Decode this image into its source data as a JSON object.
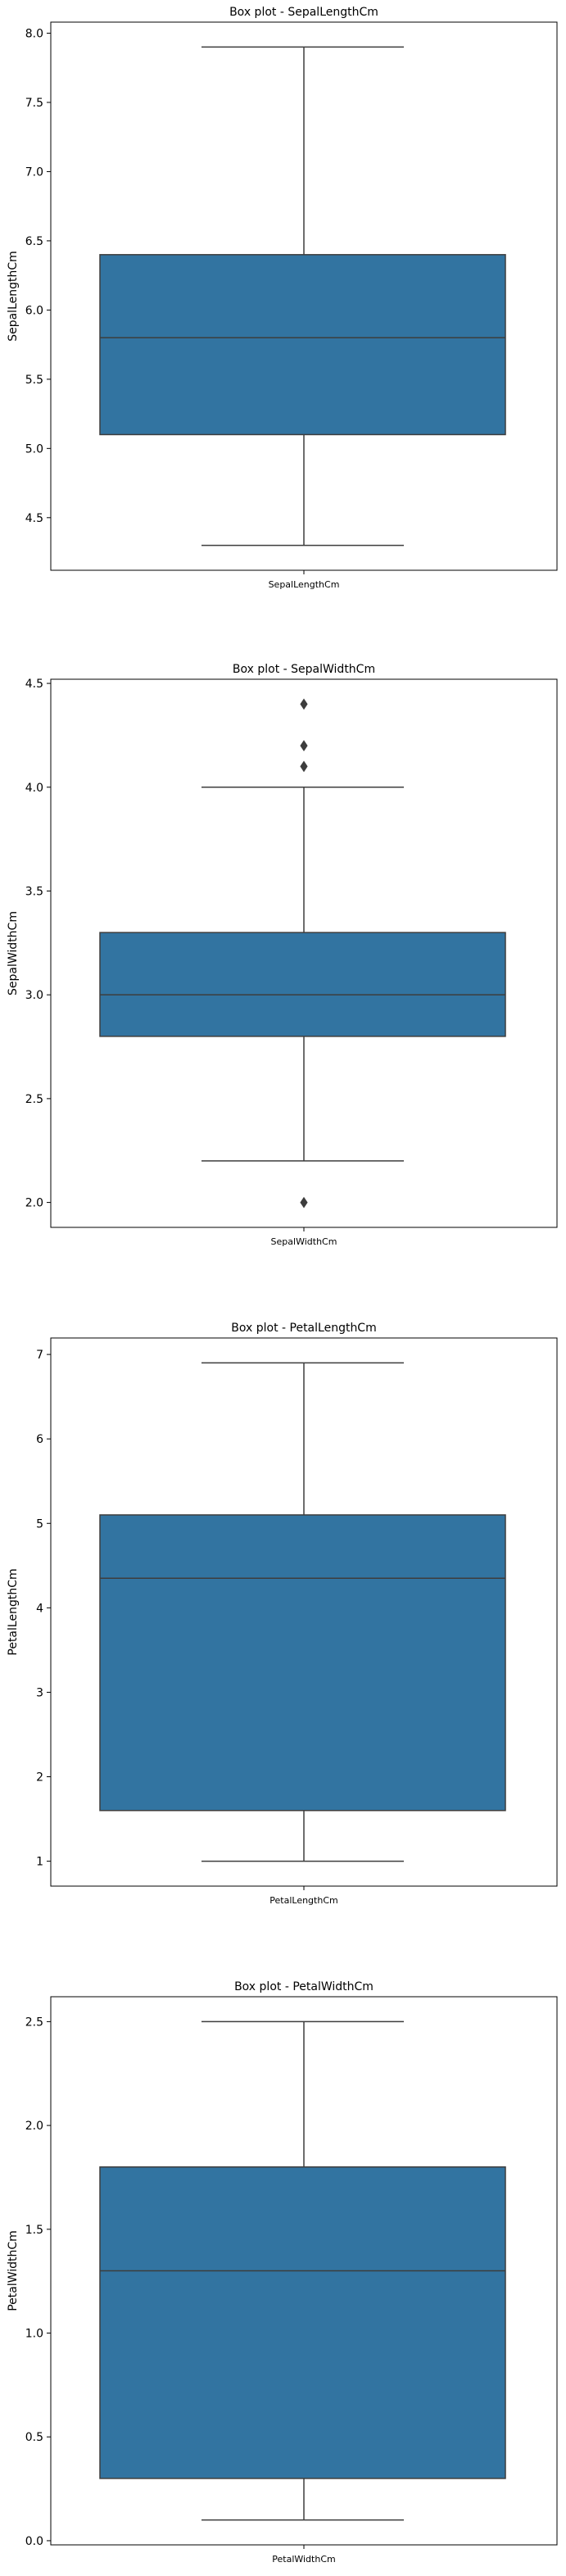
{
  "colors": {
    "box_fill": "#3274a1",
    "line": "#3d3d3d",
    "axes": "#000000",
    "background": "#ffffff"
  },
  "chart_data": [
    {
      "type": "box",
      "title": "Box plot - SepalLengthCm",
      "ylabel": "SepalLengthCm",
      "category": "SepalLengthCm",
      "ylim": [
        4.12,
        8.08
      ],
      "yticks": [
        4.5,
        5.0,
        5.5,
        6.0,
        6.5,
        7.0,
        7.5,
        8.0
      ],
      "ytick_labels": [
        "4.5",
        "5.0",
        "5.5",
        "6.0",
        "6.5",
        "7.0",
        "7.5",
        "8.0"
      ],
      "whisker_low": 4.3,
      "q1": 5.1,
      "median": 5.8,
      "q3": 6.4,
      "whisker_high": 7.9,
      "outliers": []
    },
    {
      "type": "box",
      "title": "Box plot - SepalWidthCm",
      "ylabel": "SepalWidthCm",
      "category": "SepalWidthCm",
      "ylim": [
        1.88,
        4.52
      ],
      "yticks": [
        2.0,
        2.5,
        3.0,
        3.5,
        4.0,
        4.5
      ],
      "ytick_labels": [
        "2.0",
        "2.5",
        "3.0",
        "3.5",
        "4.0",
        "4.5"
      ],
      "whisker_low": 2.2,
      "q1": 2.8,
      "median": 3.0,
      "q3": 3.3,
      "whisker_high": 4.0,
      "outliers": [
        4.4,
        4.2,
        4.1,
        2.0
      ]
    },
    {
      "type": "box",
      "title": "Box plot - PetalLengthCm",
      "ylabel": "PetalLengthCm",
      "category": "PetalLengthCm",
      "ylim": [
        0.705,
        7.195
      ],
      "yticks": [
        1,
        2,
        3,
        4,
        5,
        6,
        7
      ],
      "ytick_labels": [
        "1",
        "2",
        "3",
        "4",
        "5",
        "6",
        "7"
      ],
      "whisker_low": 1.0,
      "q1": 1.6,
      "median": 4.35,
      "q3": 5.1,
      "whisker_high": 6.9,
      "outliers": []
    },
    {
      "type": "box",
      "title": "Box plot - PetalWidthCm",
      "ylabel": "PetalWidthCm",
      "category": "PetalWidthCm",
      "ylim": [
        -0.02,
        2.62
      ],
      "yticks": [
        0.0,
        0.5,
        1.0,
        1.5,
        2.0,
        2.5
      ],
      "ytick_labels": [
        "0.0",
        "0.5",
        "1.0",
        "1.5",
        "2.0",
        "2.5"
      ],
      "whisker_low": 0.1,
      "q1": 0.3,
      "median": 1.3,
      "q3": 1.8,
      "whisker_high": 2.5,
      "outliers": []
    }
  ]
}
